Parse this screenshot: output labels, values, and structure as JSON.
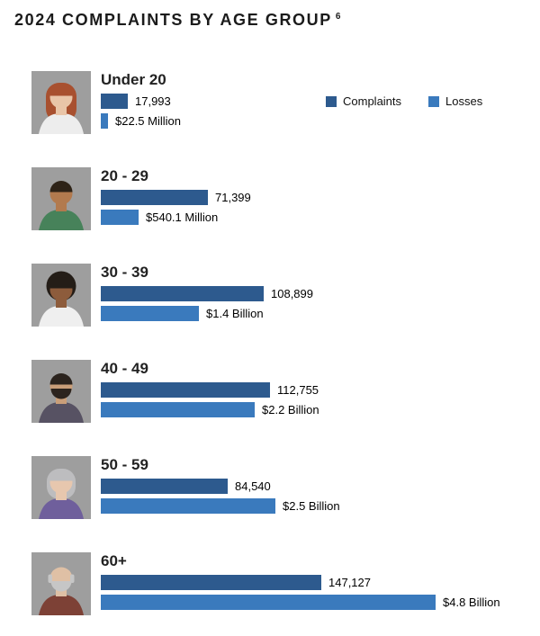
{
  "title": "2024 COMPLAINTS BY AGE GROUP",
  "footnote_marker": "6",
  "chart_data": {
    "type": "bar",
    "orientation": "horizontal",
    "title": "2024 Complaints by Age Group",
    "legend_position": "top-right",
    "categories": [
      "Under 20",
      "20 - 29",
      "30 - 39",
      "40 - 49",
      "50 - 59",
      "60+"
    ],
    "series": [
      {
        "name": "Complaints",
        "color": "#2d5a8e",
        "values": [
          17993,
          71399,
          108899,
          112755,
          84540,
          147127
        ],
        "labels": [
          "17,993",
          "71,399",
          "108,899",
          "112,755",
          "84,540",
          "147,127"
        ],
        "axis_max": 147127,
        "unit": "complaints"
      },
      {
        "name": "Losses",
        "color": "#3a7abd",
        "values": [
          0.0225,
          0.5401,
          1.4,
          2.2,
          2.5,
          4.8
        ],
        "labels": [
          "$22.5 Million",
          "$540.1 Million",
          "$1.4 Billion",
          "$2.2 Billion",
          "$2.5 Billion",
          "$4.8 Billion"
        ],
        "axis_max": 4.8,
        "unit": "USD billions"
      }
    ],
    "avatars": [
      {
        "style": "long-hair",
        "beard": false,
        "bg": "#9e9e9e",
        "hair": "#a8502f",
        "skin": "#e9c5a8",
        "shirt": "#ededed"
      },
      {
        "style": "short",
        "beard": false,
        "bg": "#9e9e9e",
        "hair": "#2e2317",
        "skin": "#b27a4e",
        "shirt": "#47825a"
      },
      {
        "style": "afro",
        "beard": false,
        "bg": "#9e9e9e",
        "hair": "#241d17",
        "skin": "#8d5c3c",
        "shirt": "#efefef"
      },
      {
        "style": "short",
        "beard": true,
        "bg": "#9e9e9e",
        "hair": "#2c241e",
        "skin": "#c99e79",
        "shirt": "#575263"
      },
      {
        "style": "bob",
        "beard": false,
        "bg": "#9e9e9e",
        "hair": "#bdbdbf",
        "skin": "#e7c7ae",
        "shirt": "#6f5f9c"
      },
      {
        "style": "bald",
        "beard": true,
        "bg": "#9e9e9e",
        "hair": "#c6c6c6",
        "skin": "#dfc0a5",
        "shirt": "#7d4136"
      }
    ]
  }
}
